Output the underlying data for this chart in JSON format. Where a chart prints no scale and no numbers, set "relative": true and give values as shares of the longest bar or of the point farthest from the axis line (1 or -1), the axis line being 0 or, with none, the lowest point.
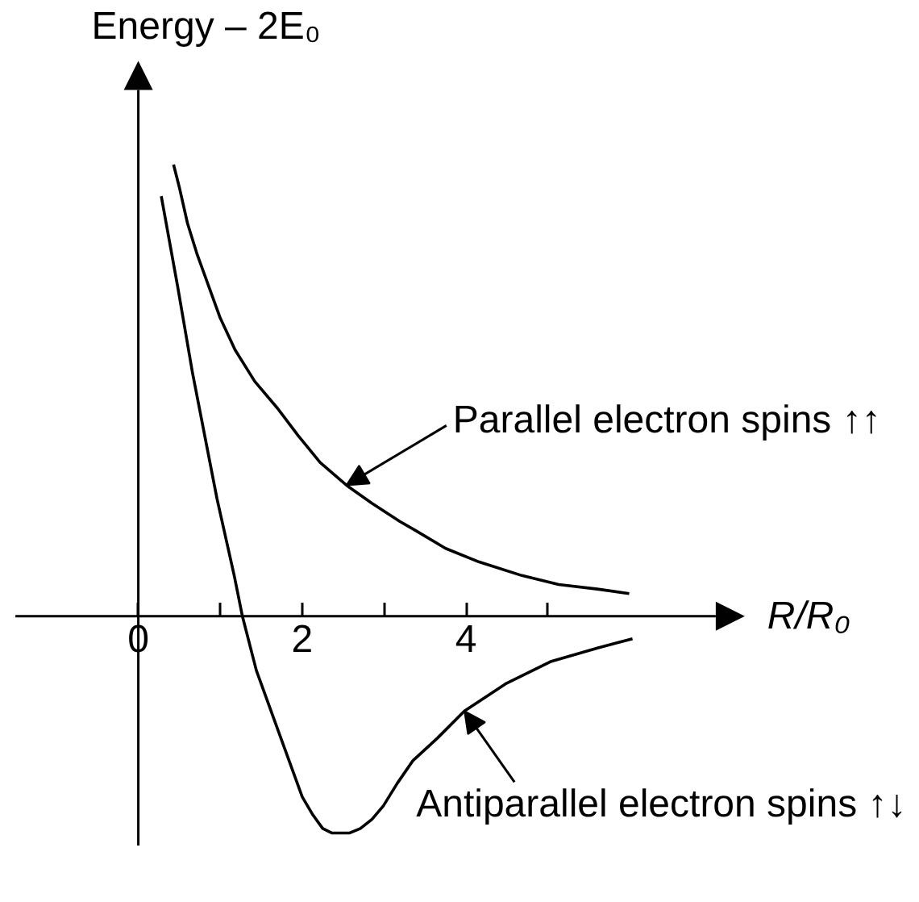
{
  "chart_data": {
    "type": "line",
    "relative": true,
    "xlabel": "R/R₀",
    "ylabel": "Energy – 2E₀",
    "xlim": [
      -1.5,
      7.4
    ],
    "xticks": [
      0,
      {
        "value": 1,
        "label": null
      },
      2,
      {
        "value": 3,
        "label": null
      },
      4,
      {
        "value": 5,
        "label": null
      }
    ],
    "series": [
      {
        "color": "#000000",
        "x": [
          0.43,
          0.5,
          0.6,
          0.72,
          0.86,
          1.0,
          1.18,
          1.42,
          1.7,
          1.95,
          2.22,
          2.54,
          2.85,
          3.19,
          3.38,
          3.75,
          4.16,
          4.68,
          5.13,
          5.6,
          5.99
        ],
        "values": [
          1.0,
          0.95,
          0.87,
          0.8,
          0.73,
          0.66,
          0.59,
          0.52,
          0.46,
          0.4,
          0.34,
          0.29,
          0.25,
          0.21,
          0.19,
          0.15,
          0.12,
          0.09,
          0.07,
          0.06,
          0.05
        ]
      },
      {
        "color": "#000000",
        "x": [
          0.28,
          0.48,
          0.66,
          0.96,
          1.17,
          1.27,
          1.44,
          1.72,
          2.0,
          2.13,
          2.25,
          2.36,
          2.46,
          2.58,
          2.71,
          2.85,
          2.99,
          3.16,
          3.35,
          3.65,
          3.98,
          4.48,
          5.04,
          5.61,
          6.03
        ],
        "values": [
          0.93,
          0.73,
          0.54,
          0.26,
          0.09,
          0.0,
          -0.12,
          -0.26,
          -0.4,
          -0.44,
          -0.47,
          -0.48,
          -0.48,
          -0.48,
          -0.47,
          -0.45,
          -0.42,
          -0.37,
          -0.32,
          -0.27,
          -0.21,
          -0.15,
          -0.1,
          -0.07,
          -0.05
        ]
      }
    ],
    "annotations": [
      {
        "text": "Parallel electron spins ↑↑",
        "x": 2.54,
        "y": 0.29
      },
      {
        "text": "Antiparallel electron spins ↑↓",
        "x": 3.98,
        "y": -0.21
      }
    ]
  }
}
